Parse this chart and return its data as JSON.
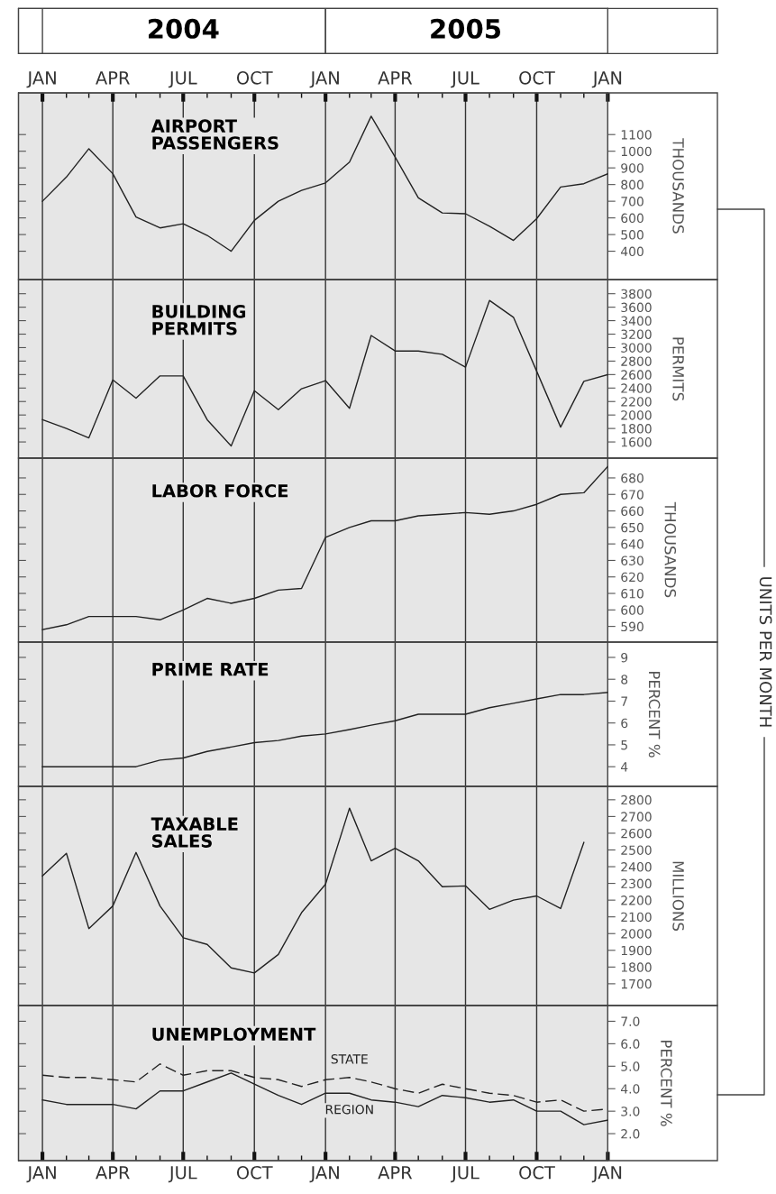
{
  "chart_data": [
    {
      "type": "line",
      "title": "AIRPORT\nPASSENGERS",
      "ylabel": "THOUSANDS",
      "annotations": [
        "UNITS PER MONTH"
      ],
      "x2lim": [
        "2003-12",
        "2006-01"
      ],
      "x2ticks": [
        {
          "value": "2004-07",
          "label": "2004"
        },
        {
          "value": "2005-07",
          "label": "2005"
        }
      ],
      "x": [
        "2004-01",
        "2004-02",
        "2004-03",
        "2004-04",
        "2004-05",
        "2004-06",
        "2004-07",
        "2004-08",
        "2004-09",
        "2004-10",
        "2004-11",
        "2004-12",
        "2005-01",
        "2005-02",
        "2005-03",
        "2005-04",
        "2005-05",
        "2005-06",
        "2005-07",
        "2005-08",
        "2005-09",
        "2005-10",
        "2005-11",
        "2005-12",
        "2006-01"
      ],
      "values": [
        700,
        845,
        1015,
        865,
        605,
        540,
        565,
        495,
        400,
        585,
        700,
        765,
        810,
        935,
        1210,
        965,
        720,
        630,
        625,
        550,
        465,
        595,
        785,
        805,
        865
      ],
      "color": "#222222",
      "xlim": [
        "2003-12",
        "2006-01"
      ],
      "ylim": [
        230,
        1350
      ],
      "yticks": [
        400,
        500,
        600,
        700,
        800,
        900,
        1000,
        1100
      ],
      "xticks": [
        {
          "value": "2004-01",
          "label": "JAN"
        },
        {
          "value": "2004-02",
          "label": null
        },
        {
          "value": "2004-03",
          "label": null
        },
        {
          "value": "2004-04",
          "label": "APR"
        },
        {
          "value": "2004-05",
          "label": null
        },
        {
          "value": "2004-06",
          "label": null
        },
        {
          "value": "2004-07",
          "label": "JUL"
        },
        {
          "value": "2004-08",
          "label": null
        },
        {
          "value": "2004-09",
          "label": null
        },
        {
          "value": "2004-10",
          "label": "OCT"
        },
        {
          "value": "2004-11",
          "label": null
        },
        {
          "value": "2004-12",
          "label": null
        },
        {
          "value": "2005-01",
          "label": "JAN"
        },
        {
          "value": "2005-02",
          "label": null
        },
        {
          "value": "2005-03",
          "label": null
        },
        {
          "value": "2005-04",
          "label": "APR"
        },
        {
          "value": "2005-05",
          "label": null
        },
        {
          "value": "2005-06",
          "label": null
        },
        {
          "value": "2005-07",
          "label": "JUL"
        },
        {
          "value": "2005-08",
          "label": null
        },
        {
          "value": "2005-09",
          "label": null
        },
        {
          "value": "2005-10",
          "label": "OCT"
        },
        {
          "value": "2005-11",
          "label": null
        },
        {
          "value": "2005-12",
          "label": null
        },
        {
          "value": "2006-01",
          "label": "JAN"
        }
      ],
      "grid": "x"
    },
    {
      "type": "line",
      "title": "BUILDING\nPERMITS",
      "ylabel": "PERMITS",
      "x": [
        "2004-01",
        "2004-02",
        "2004-03",
        "2004-04",
        "2004-05",
        "2004-06",
        "2004-07",
        "2004-08",
        "2004-09",
        "2004-10",
        "2004-11",
        "2004-12",
        "2005-01",
        "2005-02",
        "2005-03",
        "2005-04",
        "2005-05",
        "2005-06",
        "2005-07",
        "2005-08",
        "2005-09",
        "2005-10",
        "2005-11",
        "2005-12",
        "2006-01"
      ],
      "values": [
        1930,
        1800,
        1660,
        2520,
        2250,
        2580,
        2580,
        1930,
        1540,
        2360,
        2080,
        2390,
        2510,
        2100,
        3180,
        2950,
        2950,
        2900,
        2710,
        3700,
        3450,
        2650,
        1820,
        2500,
        2600
      ],
      "color": "#222222",
      "xlim": [
        "2003-12",
        "2006-01"
      ],
      "ylim": [
        1360,
        4010
      ],
      "yticks": [
        1600,
        1800,
        2000,
        2200,
        2400,
        2600,
        2800,
        3000,
        3200,
        3400,
        3600,
        3800
      ],
      "xticks": [
        "2004-01",
        "2004-04",
        "2004-07",
        "2004-10",
        "2005-01",
        "2005-04",
        "2005-07",
        "2005-10",
        "2006-01"
      ],
      "tick_labels": "y",
      "grid": "x"
    },
    {
      "type": "line",
      "title": "LABOR FORCE",
      "ylabel": "THOUSANDS",
      "x": [
        "2004-01",
        "2004-02",
        "2004-03",
        "2004-04",
        "2004-05",
        "2004-06",
        "2004-07",
        "2004-08",
        "2004-09",
        "2004-10",
        "2004-11",
        "2004-12",
        "2005-01",
        "2005-02",
        "2005-03",
        "2005-04",
        "2005-05",
        "2005-06",
        "2005-07",
        "2005-08",
        "2005-09",
        "2005-10",
        "2005-11",
        "2005-12",
        "2006-01"
      ],
      "values": [
        588,
        591,
        596,
        596,
        596,
        594,
        600,
        607,
        604,
        607,
        612,
        613,
        644,
        650,
        654,
        654,
        657,
        658,
        659,
        658,
        660,
        664,
        670,
        671,
        687
      ],
      "color": "#222222",
      "xlim": [
        "2003-12",
        "2006-01"
      ],
      "ylim": [
        580.5,
        692
      ],
      "yticks": [
        590,
        600,
        610,
        620,
        630,
        640,
        650,
        660,
        670,
        680
      ],
      "xticks": [
        "2004-01",
        "2004-04",
        "2004-07",
        "2004-10",
        "2005-01",
        "2005-04",
        "2005-07",
        "2005-10",
        "2006-01"
      ],
      "tick_labels": "y",
      "grid": "x"
    },
    {
      "type": "line",
      "title": "PRIME RATE",
      "ylabel": "PERCENT %",
      "x": [
        "2004-01",
        "2004-02",
        "2004-03",
        "2004-04",
        "2004-05",
        "2004-06",
        "2004-07",
        "2004-08",
        "2004-09",
        "2004-10",
        "2004-11",
        "2004-12",
        "2005-01",
        "2005-02",
        "2005-03",
        "2005-04",
        "2005-05",
        "2005-06",
        "2005-07",
        "2005-08",
        "2005-09",
        "2005-10",
        "2005-11",
        "2005-12",
        "2006-01"
      ],
      "values": [
        4.0,
        4.0,
        4.0,
        4.0,
        4.0,
        4.3,
        4.4,
        4.7,
        4.9,
        5.1,
        5.2,
        5.4,
        5.5,
        5.7,
        5.9,
        6.1,
        6.4,
        6.4,
        6.4,
        6.7,
        6.9,
        7.1,
        7.3,
        7.3,
        7.4
      ],
      "color": "#222222",
      "xlim": [
        "2003-12",
        "2006-01"
      ],
      "ylim": [
        3.1,
        9.7
      ],
      "yticks": [
        4,
        5,
        6,
        7,
        8,
        9
      ],
      "xticks": [
        "2004-01",
        "2004-04",
        "2004-07",
        "2004-10",
        "2005-01",
        "2005-04",
        "2005-07",
        "2005-10",
        "2006-01"
      ],
      "tick_labels": "y",
      "grid": "x"
    },
    {
      "type": "line",
      "title": "TAXABLE\nSALES",
      "ylabel": "MILLIONS",
      "x": [
        "2004-01",
        "2004-02",
        "2004-03",
        "2004-04",
        "2004-05",
        "2004-06",
        "2004-07",
        "2004-08",
        "2004-09",
        "2004-10",
        "2004-11",
        "2004-12",
        "2005-01",
        "2005-02",
        "2005-03",
        "2005-04",
        "2005-05",
        "2005-06",
        "2005-07",
        "2005-08",
        "2005-09",
        "2005-10",
        "2005-11",
        "2005-12"
      ],
      "values": [
        2345,
        2480,
        2030,
        2165,
        2485,
        2165,
        1975,
        1935,
        1795,
        1765,
        1875,
        2125,
        2295,
        2750,
        2435,
        2510,
        2435,
        2280,
        2285,
        2145,
        2200,
        2225,
        2150,
        2545
      ],
      "color": "#222222",
      "xlim": [
        "2003-12",
        "2006-01"
      ],
      "ylim": [
        1570,
        2880
      ],
      "yticks": [
        1700,
        1800,
        1900,
        2000,
        2100,
        2200,
        2300,
        2400,
        2500,
        2600,
        2700,
        2800
      ],
      "xticks": [
        "2004-01",
        "2004-04",
        "2004-07",
        "2004-10",
        "2005-01",
        "2005-04",
        "2005-07",
        "2005-10",
        "2006-01"
      ],
      "tick_labels": "y",
      "grid": "x"
    },
    {
      "type": "line",
      "title": "UNEMPLOYMENT",
      "ylabel": "PERCENT %",
      "x": [
        "2004-01",
        "2004-02",
        "2004-03",
        "2004-04",
        "2004-05",
        "2004-06",
        "2004-07",
        "2004-08",
        "2004-09",
        "2004-10",
        "2004-11",
        "2004-12",
        "2005-01",
        "2005-02",
        "2005-03",
        "2005-04",
        "2005-05",
        "2005-06",
        "2005-07",
        "2005-08",
        "2005-09",
        "2005-10",
        "2005-11",
        "2005-12",
        "2006-01"
      ],
      "series": [
        {
          "name": "STATE",
          "color": "#222222",
          "line_style": "dashed",
          "values": [
            4.6,
            4.5,
            4.5,
            4.4,
            4.3,
            5.1,
            4.6,
            4.8,
            4.8,
            4.5,
            4.4,
            4.1,
            4.4,
            4.5,
            4.3,
            4.0,
            3.8,
            4.2,
            4.0,
            3.8,
            3.7,
            3.4,
            3.5,
            3.0,
            3.1
          ]
        },
        {
          "name": "REGION",
          "color": "#222222",
          "line_style": "solid",
          "values": [
            3.5,
            3.3,
            3.3,
            3.3,
            3.1,
            3.9,
            3.9,
            4.3,
            4.7,
            4.2,
            3.7,
            3.3,
            3.8,
            3.8,
            3.5,
            3.4,
            3.2,
            3.7,
            3.6,
            3.4,
            3.5,
            3.0,
            3.0,
            2.4,
            2.6
          ]
        }
      ],
      "xlim": [
        "2003-12",
        "2006-01"
      ],
      "ylim": [
        0.8,
        7.7
      ],
      "yticks": [
        {
          "value": 2,
          "label": "2.0"
        },
        {
          "value": 3,
          "label": "3.0"
        },
        {
          "value": 4,
          "label": "4.0"
        },
        {
          "value": 5,
          "label": "5.0"
        },
        {
          "value": 6,
          "label": "6.0"
        },
        {
          "value": 7,
          "label": "7.0"
        }
      ],
      "xticks": [
        {
          "value": "2004-01",
          "label": "JAN"
        },
        {
          "value": "2004-02",
          "label": null
        },
        {
          "value": "2004-03",
          "label": null
        },
        {
          "value": "2004-04",
          "label": "APR"
        },
        {
          "value": "2004-05",
          "label": null
        },
        {
          "value": "2004-06",
          "label": null
        },
        {
          "value": "2004-07",
          "label": "JUL"
        },
        {
          "value": "2004-08",
          "label": null
        },
        {
          "value": "2004-09",
          "label": null
        },
        {
          "value": "2004-10",
          "label": "OCT"
        },
        {
          "value": "2004-11",
          "label": null
        },
        {
          "value": "2004-12",
          "label": null
        },
        {
          "value": "2005-01",
          "label": "JAN"
        },
        {
          "value": "2005-02",
          "label": null
        },
        {
          "value": "2005-03",
          "label": null
        },
        {
          "value": "2005-04",
          "label": "APR"
        },
        {
          "value": "2005-05",
          "label": null
        },
        {
          "value": "2005-06",
          "label": null
        },
        {
          "value": "2005-07",
          "label": "JUL"
        },
        {
          "value": "2005-08",
          "label": null
        },
        {
          "value": "2005-09",
          "label": null
        },
        {
          "value": "2005-10",
          "label": "OCT"
        },
        {
          "value": "2005-11",
          "label": null
        },
        {
          "value": "2005-12",
          "label": null
        },
        {
          "value": "2006-01",
          "label": "JAN"
        }
      ],
      "grid": "x"
    }
  ]
}
